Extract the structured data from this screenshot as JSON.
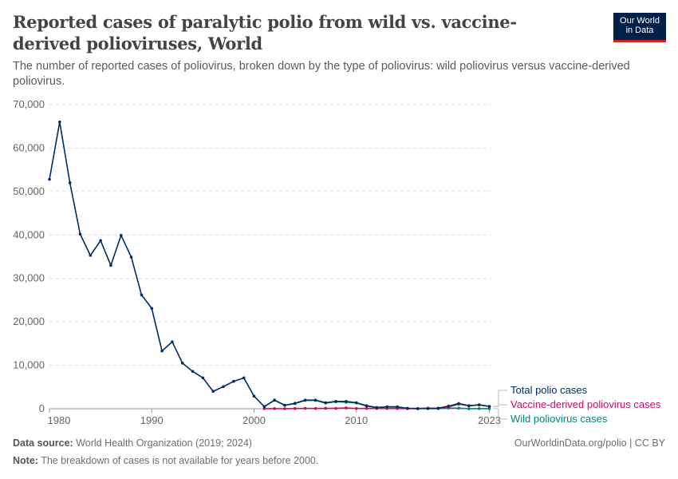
{
  "title": "Reported cases of paralytic polio from wild vs. vaccine-derived polioviruses, World",
  "subtitle": "The number of reported cases of poliovirus, broken down by the type of poliovirus: wild poliovirus versus vaccine-derived poliovirus.",
  "logo": {
    "line1": "Our World",
    "line2": "in Data"
  },
  "footer": {
    "source_label": "Data source:",
    "source": "World Health Organization (2019; 2024)",
    "note_label": "Note:",
    "note": "The breakdown of cases is not available for years before 2000.",
    "url": "OurWorldinData.org/polio | CC BY"
  },
  "chart_data": {
    "type": "line",
    "title": "Reported cases of paralytic polio from wild vs. vaccine-derived polioviruses, World",
    "xlim": [
      1980,
      2023
    ],
    "ylim": [
      0,
      70000
    ],
    "xticks": [
      1980,
      1990,
      2000,
      2010,
      2023
    ],
    "yticks": [
      0,
      10000,
      20000,
      30000,
      40000,
      50000,
      60000,
      70000
    ],
    "ytick_labels": [
      "0",
      "10,000",
      "20,000",
      "30,000",
      "40,000",
      "50,000",
      "60,000",
      "70,000"
    ],
    "grid": "horizontal dashed",
    "legend": "right, end-of-line labels",
    "series": [
      {
        "name": "Total polio cases",
        "color": "#002c5f",
        "x": [
          1980,
          1981,
          1982,
          1983,
          1984,
          1985,
          1986,
          1987,
          1988,
          1989,
          1990,
          1991,
          1992,
          1993,
          1994,
          1995,
          1996,
          1997,
          1998,
          1999,
          2000,
          2001,
          2002,
          2003,
          2004,
          2005,
          2006,
          2007,
          2008,
          2009,
          2010,
          2011,
          2012,
          2013,
          2014,
          2015,
          2016,
          2017,
          2018,
          2019,
          2020,
          2021,
          2022,
          2023
        ],
        "y": [
          52800,
          66000,
          52000,
          40200,
          35300,
          38700,
          33000,
          39900,
          34900,
          26200,
          23100,
          13300,
          15400,
          10500,
          8600,
          7100,
          4000,
          5100,
          6300,
          7100,
          2900,
          500,
          2000,
          800,
          1250,
          2000,
          2000,
          1400,
          1700,
          1700,
          1400,
          700,
          300,
          450,
          450,
          100,
          50,
          100,
          130,
          600,
          1200,
          700,
          900,
          550
        ]
      },
      {
        "name": "Vaccine-derived poliovirus cases",
        "color": "#cf0a66",
        "x": [
          2001,
          2002,
          2003,
          2004,
          2005,
          2006,
          2007,
          2008,
          2009,
          2010,
          2011,
          2012,
          2013,
          2014,
          2015,
          2016,
          2017,
          2018,
          2019,
          2020,
          2021,
          2022,
          2023
        ],
        "y": [
          20,
          40,
          10,
          50,
          90,
          60,
          100,
          90,
          200,
          70,
          80,
          70,
          60,
          60,
          30,
          5,
          100,
          100,
          420,
          1070,
          690,
          880,
          530
        ]
      },
      {
        "name": "Wild poliovirus cases",
        "color": "#00847e",
        "x": [
          2001,
          2002,
          2003,
          2004,
          2005,
          2006,
          2007,
          2008,
          2009,
          2010,
          2011,
          2012,
          2013,
          2014,
          2015,
          2016,
          2017,
          2018,
          2019,
          2020,
          2021,
          2022,
          2023
        ],
        "y": [
          480,
          1960,
          790,
          1200,
          1910,
          1940,
          1300,
          1610,
          1500,
          1330,
          620,
          230,
          390,
          390,
          70,
          45,
          20,
          30,
          180,
          130,
          6,
          30,
          12
        ]
      }
    ]
  }
}
